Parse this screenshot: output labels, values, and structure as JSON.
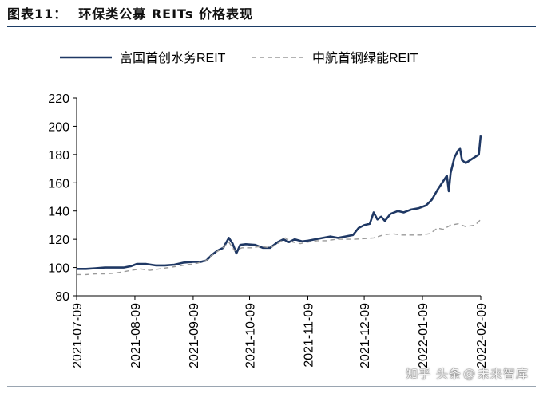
{
  "figure": {
    "label": "图表11：",
    "title": "环保类公募 REITs 价格表现"
  },
  "watermark": {
    "prefix": "知乎",
    "handle": "头条",
    "name": "未来智库"
  },
  "colors": {
    "rule": "#1c3d66",
    "series_solid": "#1f3864",
    "series_dashed": "#9a9a9a",
    "axis": "#000000"
  },
  "chart_data": {
    "type": "line",
    "title": "",
    "xlabel": "",
    "ylabel": "",
    "ylim": [
      80,
      220
    ],
    "yticks": [
      80,
      100,
      120,
      140,
      160,
      180,
      200,
      220
    ],
    "xlim": [
      "2021-07-09",
      "2022-02-09"
    ],
    "xticks": [
      "2021-07-09",
      "2021-08-09",
      "2021-09-09",
      "2021-10-09",
      "2021-11-09",
      "2021-12-09",
      "2022-01-09",
      "2022-02-09"
    ],
    "grid": false,
    "legend": "top",
    "series": [
      {
        "name": "富国首创水务REIT",
        "style": "solid",
        "points": [
          [
            "2021-07-09",
            99
          ],
          [
            "2021-07-14",
            99
          ],
          [
            "2021-07-19",
            99.5
          ],
          [
            "2021-07-24",
            100
          ],
          [
            "2021-07-29",
            100
          ],
          [
            "2021-08-03",
            100
          ],
          [
            "2021-08-07",
            101
          ],
          [
            "2021-08-10",
            102.5
          ],
          [
            "2021-08-15",
            102.5
          ],
          [
            "2021-08-20",
            101.5
          ],
          [
            "2021-08-25",
            101.5
          ],
          [
            "2021-08-30",
            102
          ],
          [
            "2021-09-04",
            103.5
          ],
          [
            "2021-09-09",
            104
          ],
          [
            "2021-09-13",
            104
          ],
          [
            "2021-09-16",
            105
          ],
          [
            "2021-09-19",
            109
          ],
          [
            "2021-09-22",
            112
          ],
          [
            "2021-09-25",
            114
          ],
          [
            "2021-09-28",
            121
          ],
          [
            "2021-09-30",
            117
          ],
          [
            "2021-10-02",
            110
          ],
          [
            "2021-10-04",
            116
          ],
          [
            "2021-10-07",
            116.5
          ],
          [
            "2021-10-12",
            116
          ],
          [
            "2021-10-16",
            114
          ],
          [
            "2021-10-20",
            114
          ],
          [
            "2021-10-24",
            118
          ],
          [
            "2021-10-27",
            120
          ],
          [
            "2021-10-30",
            118
          ],
          [
            "2021-11-02",
            120
          ],
          [
            "2021-11-06",
            118.5
          ],
          [
            "2021-11-09",
            119
          ],
          [
            "2021-11-13",
            120
          ],
          [
            "2021-11-17",
            121
          ],
          [
            "2021-11-21",
            122
          ],
          [
            "2021-11-25",
            121
          ],
          [
            "2021-11-29",
            122
          ],
          [
            "2021-12-03",
            123
          ],
          [
            "2021-12-06",
            128
          ],
          [
            "2021-12-09",
            130
          ],
          [
            "2021-12-12",
            131
          ],
          [
            "2021-12-14",
            139
          ],
          [
            "2021-12-16",
            134
          ],
          [
            "2021-12-18",
            136
          ],
          [
            "2021-12-20",
            133
          ],
          [
            "2021-12-23",
            138
          ],
          [
            "2021-12-27",
            140
          ],
          [
            "2021-12-30",
            139
          ],
          [
            "2022-01-03",
            141
          ],
          [
            "2022-01-07",
            142
          ],
          [
            "2022-01-11",
            144
          ],
          [
            "2022-01-14",
            148
          ],
          [
            "2022-01-17",
            155
          ],
          [
            "2022-01-20",
            161
          ],
          [
            "2022-01-22",
            165
          ],
          [
            "2022-01-23",
            154
          ],
          [
            "2022-01-24",
            167
          ],
          [
            "2022-01-26",
            178
          ],
          [
            "2022-01-28",
            183
          ],
          [
            "2022-01-29",
            184
          ],
          [
            "2022-01-30",
            176
          ],
          [
            "2022-02-01",
            174
          ],
          [
            "2022-02-08",
            180
          ],
          [
            "2022-02-09",
            194
          ]
        ]
      },
      {
        "name": "中航首钢绿能REIT",
        "style": "dashed",
        "points": [
          [
            "2021-07-09",
            95
          ],
          [
            "2021-07-14",
            95
          ],
          [
            "2021-07-19",
            95.5
          ],
          [
            "2021-07-24",
            95.5
          ],
          [
            "2021-07-29",
            96
          ],
          [
            "2021-08-03",
            97
          ],
          [
            "2021-08-07",
            98
          ],
          [
            "2021-08-12",
            99
          ],
          [
            "2021-08-17",
            98
          ],
          [
            "2021-08-22",
            99
          ],
          [
            "2021-08-27",
            100
          ],
          [
            "2021-09-01",
            101
          ],
          [
            "2021-09-06",
            102
          ],
          [
            "2021-09-11",
            103
          ],
          [
            "2021-09-16",
            105
          ],
          [
            "2021-09-20",
            110
          ],
          [
            "2021-09-24",
            113
          ],
          [
            "2021-09-28",
            118
          ],
          [
            "2021-10-01",
            112
          ],
          [
            "2021-10-05",
            114
          ],
          [
            "2021-10-10",
            114
          ],
          [
            "2021-10-15",
            115
          ],
          [
            "2021-10-20",
            114
          ],
          [
            "2021-10-24",
            117
          ],
          [
            "2021-10-28",
            121
          ],
          [
            "2021-11-01",
            118
          ],
          [
            "2021-11-05",
            117
          ],
          [
            "2021-11-09",
            118
          ],
          [
            "2021-11-14",
            119
          ],
          [
            "2021-11-19",
            119
          ],
          [
            "2021-11-24",
            120
          ],
          [
            "2021-11-29",
            120
          ],
          [
            "2021-12-04",
            120
          ],
          [
            "2021-12-09",
            120.5
          ],
          [
            "2021-12-14",
            121
          ],
          [
            "2021-12-19",
            123
          ],
          [
            "2021-12-24",
            124
          ],
          [
            "2021-12-29",
            123
          ],
          [
            "2022-01-03",
            123
          ],
          [
            "2022-01-08",
            123
          ],
          [
            "2022-01-13",
            124
          ],
          [
            "2022-01-17",
            128
          ],
          [
            "2022-01-20",
            127
          ],
          [
            "2022-01-24",
            130
          ],
          [
            "2022-01-28",
            131
          ],
          [
            "2022-02-01",
            129
          ],
          [
            "2022-02-06",
            130
          ],
          [
            "2022-02-09",
            134
          ]
        ]
      }
    ]
  }
}
